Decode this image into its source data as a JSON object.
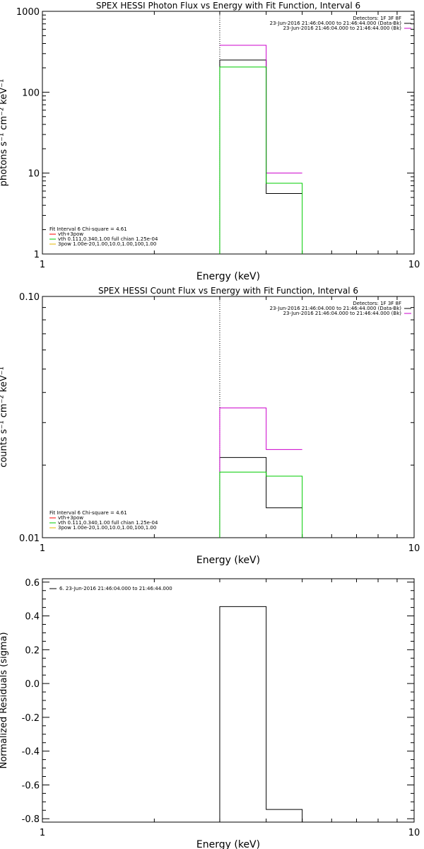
{
  "chart_data": [
    {
      "type": "line",
      "title": "SPEX HESSI Photon Flux vs Energy with Fit Function, Interval 6",
      "xlabel": "Energy (keV)",
      "ylabel": "photons s⁻¹ cm⁻² keV⁻¹",
      "xscale": "log",
      "yscale": "log",
      "xlim": [
        1,
        10
      ],
      "ylim": [
        1,
        1000
      ],
      "xticks": [
        {
          "v": 1,
          "label": "1"
        },
        {
          "v": 10,
          "label": "10"
        }
      ],
      "yticks": [
        {
          "v": 1,
          "label": "1"
        },
        {
          "v": 10,
          "label": "10"
        },
        {
          "v": 100,
          "label": "100"
        },
        {
          "v": 1000,
          "label": "1000"
        }
      ],
      "vline_x": 3.0,
      "header_legend": {
        "lines": [
          {
            "text": "Detectors: 1F 3F 8F",
            "color": ""
          },
          {
            "text": "23-Jun-2016 21:46:04.000 to 21:46:44.000 (Data-Bk)",
            "color": "#000000"
          },
          {
            "text": "23-Jun-2016 21:46:04.000 to 21:46:44.000 (Bk)",
            "color": "#cc00cc"
          }
        ],
        "placement": "top-right"
      },
      "fit_legend": {
        "header": "Fit Interval 6   Chi-square = 4.61",
        "lines": [
          {
            "text": "vth+3pow",
            "color": "#ff0000"
          },
          {
            "text": "vth 0.111,0.340,1.00  full chian 1.25e-04",
            "color": "#00cc00"
          },
          {
            "text": "3pow 1.00e-20,1.00,10.0,1.00,100,1.00",
            "color": "#e6b800"
          }
        ],
        "placement": "bottom-left"
      },
      "series": [
        {
          "name": "",
          "color": "#000000",
          "edges": [
            3.0,
            4.0,
            5.0
          ],
          "values": [
            250,
            5.6
          ],
          "drop_left": true,
          "drop_right": false
        },
        {
          "name": "",
          "color": "#cc00cc",
          "edges": [
            3.0,
            4.0,
            5.0
          ],
          "values": [
            380,
            10
          ],
          "drop_left": false,
          "drop_right": false
        },
        {
          "name": "",
          "color": "#00cc00",
          "edges": [
            3.0,
            4.0,
            5.0
          ],
          "values": [
            205,
            7.5
          ],
          "drop_left": true,
          "drop_right": true
        }
      ]
    },
    {
      "type": "line",
      "title": "SPEX HESSI Count Flux vs Energy with Fit Function, Interval 6",
      "xlabel": "Energy (keV)",
      "ylabel": "counts s⁻¹ cm⁻² keV⁻¹",
      "xscale": "log",
      "yscale": "log",
      "xlim": [
        1,
        10
      ],
      "ylim": [
        0.01,
        0.1
      ],
      "xticks": [
        {
          "v": 1,
          "label": "1"
        },
        {
          "v": 10,
          "label": "10"
        }
      ],
      "yticks": [
        {
          "v": 0.01,
          "label": "0.01"
        },
        {
          "v": 0.1,
          "label": "0.10"
        }
      ],
      "vline_x": 3.0,
      "header_legend": {
        "lines": [
          {
            "text": "Detectors: 1F 3F 8F",
            "color": ""
          },
          {
            "text": "23-Jun-2016 21:46:04.000 to 21:46:44.000 (Data-Bk)",
            "color": "#000000"
          },
          {
            "text": "23-Jun-2016 21:46:04.000 to 21:46:44.000 (Bk)",
            "color": "#cc00cc"
          }
        ],
        "placement": "top-right"
      },
      "fit_legend": {
        "header": "Fit Interval 6   Chi-square = 4.61",
        "lines": [
          {
            "text": "vth+3pow",
            "color": "#ff0000"
          },
          {
            "text": "vth 0.111,0.340,1.00  full chian 1.25e-04",
            "color": "#00cc00"
          },
          {
            "text": "3pow 1.00e-20,1.00,10.0,1.00,100,1.00",
            "color": "#e6b800"
          }
        ],
        "placement": "bottom-left"
      },
      "series": [
        {
          "name": "",
          "color": "#000000",
          "edges": [
            3.0,
            4.0,
            5.0
          ],
          "values": [
            0.0215,
            0.0133
          ],
          "drop_left": true,
          "drop_right": false
        },
        {
          "name": "",
          "color": "#cc00cc",
          "edges": [
            3.0,
            4.0,
            5.0
          ],
          "values": [
            0.0345,
            0.0232
          ],
          "drop_left": true,
          "drop_right": false
        },
        {
          "name": "",
          "color": "#00cc00",
          "edges": [
            3.0,
            4.0,
            5.0
          ],
          "values": [
            0.0187,
            0.018
          ],
          "drop_left": true,
          "drop_right": true
        }
      ]
    },
    {
      "type": "line",
      "title": "",
      "xlabel": "Energy (keV)",
      "ylabel": "Normalized Residuals (sigma)",
      "xscale": "log",
      "yscale": "linear",
      "xlim": [
        1,
        10
      ],
      "ylim": [
        -0.82,
        0.62
      ],
      "xticks": [
        {
          "v": 1,
          "label": "1"
        },
        {
          "v": 10,
          "label": "10"
        }
      ],
      "yticks": [
        {
          "v": 0.6,
          "label": "0.6"
        },
        {
          "v": 0.4,
          "label": "0.4"
        },
        {
          "v": 0.2,
          "label": "0.2"
        },
        {
          "v": 0.0,
          "label": "0.0"
        },
        {
          "v": -0.2,
          "label": "-0.2"
        },
        {
          "v": -0.4,
          "label": "-0.4"
        },
        {
          "v": -0.6,
          "label": "-0.6"
        },
        {
          "v": -0.8,
          "label": "-0.8"
        }
      ],
      "vline_x": null,
      "header_legend": {
        "lines": [
          {
            "text": "6. 23-Jun-2016 21:46:04.000 to 21:46:44.000",
            "color": "#000000"
          }
        ],
        "placement": "top-left"
      },
      "fit_legend": null,
      "series": [
        {
          "name": "",
          "color": "#000000",
          "edges": [
            3.0,
            4.0,
            5.0
          ],
          "values": [
            0.455,
            -0.745
          ],
          "drop_left": true,
          "drop_right": true
        }
      ]
    }
  ]
}
